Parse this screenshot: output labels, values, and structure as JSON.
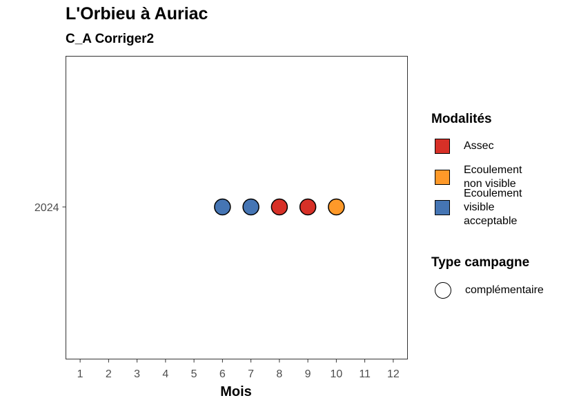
{
  "chart_data": {
    "type": "scatter",
    "title": "L'Orbieu à Auriac",
    "subtitle": "C_A Corriger2",
    "xlabel": "Mois",
    "ylabel": "",
    "x_ticks": [
      1,
      2,
      3,
      4,
      5,
      6,
      7,
      8,
      9,
      10,
      11,
      12
    ],
    "y_categories": [
      "2024"
    ],
    "xlim": [
      0.5,
      12.5
    ],
    "grid": false,
    "legend_position": "right",
    "points": [
      {
        "x": 6,
        "y": "2024",
        "modalite": "Ecoulement visible acceptable",
        "type_campagne": "complémentaire"
      },
      {
        "x": 7,
        "y": "2024",
        "modalite": "Ecoulement visible acceptable",
        "type_campagne": "complémentaire"
      },
      {
        "x": 8,
        "y": "2024",
        "modalite": "Assec",
        "type_campagne": "complémentaire"
      },
      {
        "x": 9,
        "y": "2024",
        "modalite": "Assec",
        "type_campagne": "complémentaire"
      },
      {
        "x": 10,
        "y": "2024",
        "modalite": "Ecoulement non visible",
        "type_campagne": "complémentaire"
      }
    ],
    "colors": {
      "Assec": "#d73027",
      "Ecoulement non visible": "#fe9929",
      "Ecoulement visible acceptable": "#4575b4"
    }
  },
  "legend": {
    "modalites_title": "Modalités",
    "modalites": [
      {
        "label": "Assec",
        "color": "#d73027"
      },
      {
        "label": "Ecoulement\nnon visible",
        "color": "#fe9929"
      },
      {
        "label": "Ecoulement\nvisible\nacceptable",
        "color": "#4575b4"
      }
    ],
    "type_title": "Type campagne",
    "types": [
      {
        "label": "complémentaire"
      }
    ]
  }
}
